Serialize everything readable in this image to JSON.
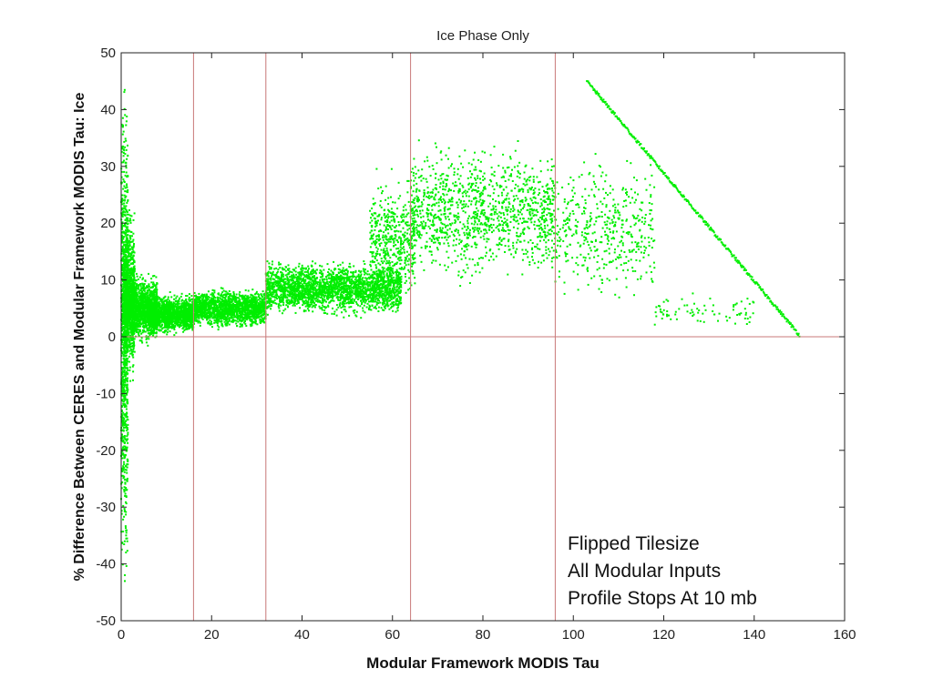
{
  "chart_data": {
    "type": "scatter",
    "title": "Ice Phase Only",
    "xlabel": "Modular Framework MODIS Tau",
    "ylabel": "% Difference Between CERES and Modular Framework MODIS Tau: Ice",
    "xlim": [
      0,
      160
    ],
    "ylim": [
      -50,
      50
    ],
    "xticks": [
      0,
      20,
      40,
      60,
      80,
      100,
      120,
      140,
      160
    ],
    "yticks": [
      -50,
      -40,
      -30,
      -20,
      -10,
      0,
      10,
      20,
      30,
      40,
      50
    ],
    "grid": false,
    "legend": "none",
    "point_color": "#00ee00",
    "reference_line_color": "#c87878",
    "reference_lines": {
      "vertical_x": [
        16,
        32,
        64,
        96
      ],
      "horizontal_y": [
        0
      ]
    },
    "series": [
      {
        "clusters": [
          {
            "x_range": [
              0,
              1.5
            ],
            "y_range": [
              -50,
              50
            ],
            "n": 900
          },
          {
            "x_range": [
              0.5,
              3
            ],
            "y_range": [
              -10,
              25
            ],
            "n": 900
          },
          {
            "x_range": [
              1,
              8
            ],
            "y_range": [
              -2,
              12
            ],
            "n": 1400
          },
          {
            "x_range": [
              6,
              16
            ],
            "y_range": [
              0,
              8
            ],
            "n": 1500
          },
          {
            "x_range": [
              16,
              32
            ],
            "y_range": [
              1,
              9
            ],
            "n": 1600
          },
          {
            "x_range": [
              32,
              62
            ],
            "y_range": [
              3,
              14
            ],
            "n": 2400
          },
          {
            "x_range": [
              55,
              65
            ],
            "y_range": [
              4,
              30
            ],
            "n": 500
          },
          {
            "x_range": [
              64,
              96
            ],
            "y_range": [
              8,
              36
            ],
            "n": 1200
          },
          {
            "x_range": [
              96,
              118
            ],
            "y_range": [
              4,
              34
            ],
            "n": 450
          },
          {
            "x_range": [
              118,
              140
            ],
            "y_range": [
              1,
              8
            ],
            "n": 80
          }
        ],
        "curve": {
          "x_range": [
            103,
            150
          ],
          "y_at_start": 45,
          "y_at_end": 0.3,
          "n": 320
        }
      }
    ]
  },
  "annotation": {
    "lines": [
      "Flipped Tilesize",
      "All Modular Inputs",
      "Profile Stops At 10 mb"
    ]
  }
}
